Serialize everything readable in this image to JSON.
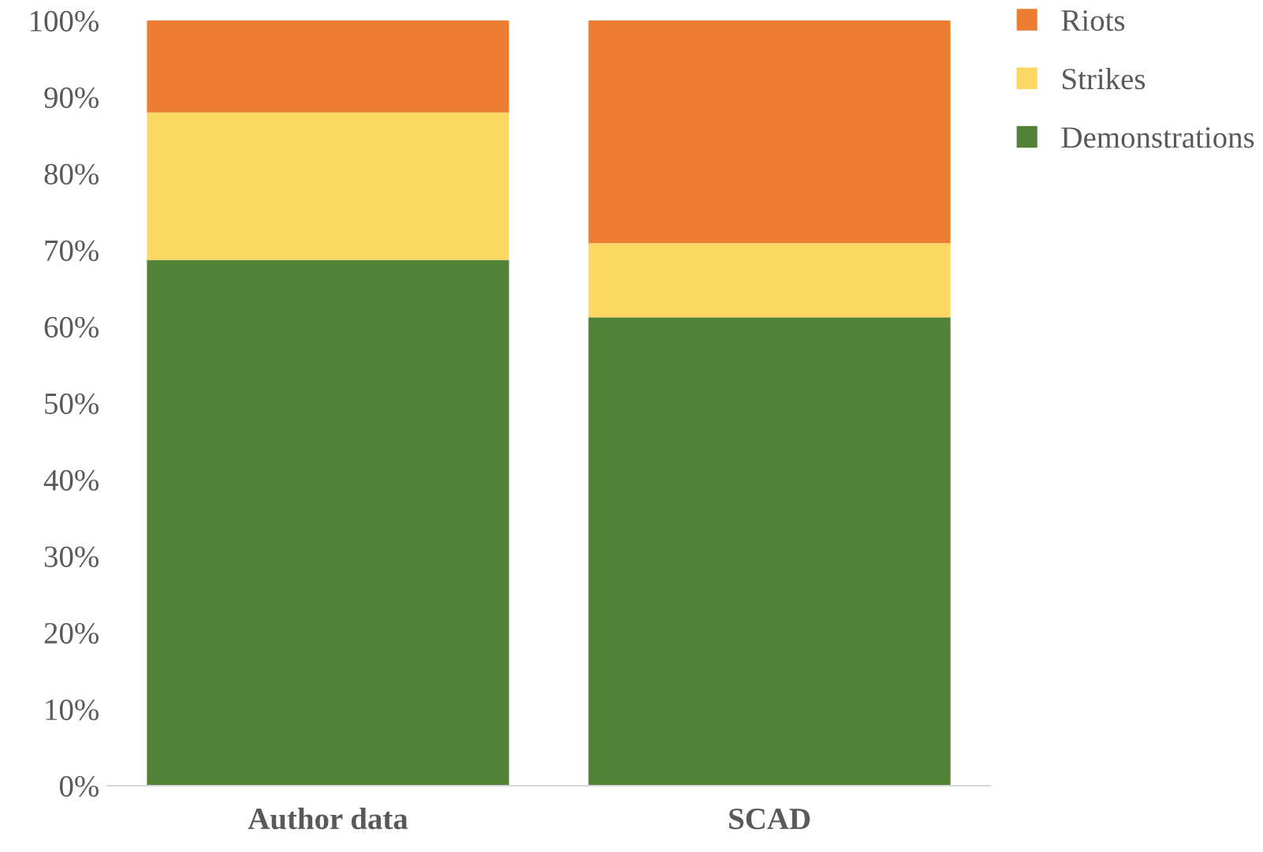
{
  "chart_data": {
    "type": "bar",
    "stacked": true,
    "categories": [
      "Author data",
      "SCAD"
    ],
    "series": [
      {
        "name": "Demonstrations",
        "color": "#538135",
        "values": [
          68.7,
          61.2
        ]
      },
      {
        "name": "Strikes",
        "color": "#fdd764",
        "values": [
          19.3,
          9.7
        ]
      },
      {
        "name": "Riots",
        "color": "#ed7d31",
        "values": [
          12.0,
          29.1
        ]
      }
    ],
    "ylim": [
      0,
      100
    ],
    "yticks": [
      {
        "value": 0,
        "label": "0%"
      },
      {
        "value": 10,
        "label": "10%"
      },
      {
        "value": 20,
        "label": "20%"
      },
      {
        "value": 30,
        "label": "30%"
      },
      {
        "value": 40,
        "label": "40%"
      },
      {
        "value": 50,
        "label": "50%"
      },
      {
        "value": 60,
        "label": "60%"
      },
      {
        "value": 70,
        "label": "70%"
      },
      {
        "value": 80,
        "label": "80%"
      },
      {
        "value": 90,
        "label": "90%"
      },
      {
        "value": 100,
        "label": "100%"
      }
    ],
    "grid": false,
    "legend": "right"
  }
}
